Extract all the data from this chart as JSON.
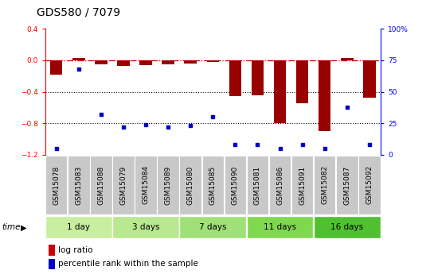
{
  "title": "GDS580 / 7079",
  "samples": [
    "GSM15078",
    "GSM15083",
    "GSM15088",
    "GSM15079",
    "GSM15084",
    "GSM15089",
    "GSM15080",
    "GSM15085",
    "GSM15090",
    "GSM15081",
    "GSM15086",
    "GSM15091",
    "GSM15082",
    "GSM15087",
    "GSM15092"
  ],
  "log_ratio": [
    -0.18,
    0.03,
    -0.05,
    -0.07,
    -0.06,
    -0.05,
    -0.04,
    -0.02,
    -0.45,
    -0.44,
    -0.8,
    -0.55,
    -0.9,
    0.03,
    -0.47
  ],
  "percentile_rank": [
    5,
    68,
    32,
    22,
    24,
    22,
    23,
    30,
    8,
    8,
    5,
    8,
    5,
    38,
    8
  ],
  "groups": [
    {
      "label": "1 day",
      "indices": [
        0,
        1,
        2
      ],
      "color": "#c8eea0"
    },
    {
      "label": "3 days",
      "indices": [
        3,
        4,
        5
      ],
      "color": "#b8e890"
    },
    {
      "label": "7 days",
      "indices": [
        6,
        7,
        8
      ],
      "color": "#a0e078"
    },
    {
      "label": "11 days",
      "indices": [
        9,
        10,
        11
      ],
      "color": "#80d850"
    },
    {
      "label": "16 days",
      "indices": [
        12,
        13,
        14
      ],
      "color": "#50c030"
    }
  ],
  "ylim_left": [
    -1.2,
    0.4
  ],
  "ylim_right": [
    0,
    100
  ],
  "yticks_left": [
    -1.2,
    -0.8,
    -0.4,
    0.0,
    0.4
  ],
  "yticks_right": [
    0,
    25,
    50,
    75,
    100
  ],
  "bar_color": "#990000",
  "point_color": "#0000cc",
  "dashed_line_color": "#cc0000",
  "dotted_line_color": "#000000",
  "bg_color": "#ffffff",
  "bar_width": 0.55,
  "title_fontsize": 10,
  "tick_fontsize": 6.5,
  "label_fontsize": 7.5,
  "group_sample_box_color": "#c8c8c8"
}
